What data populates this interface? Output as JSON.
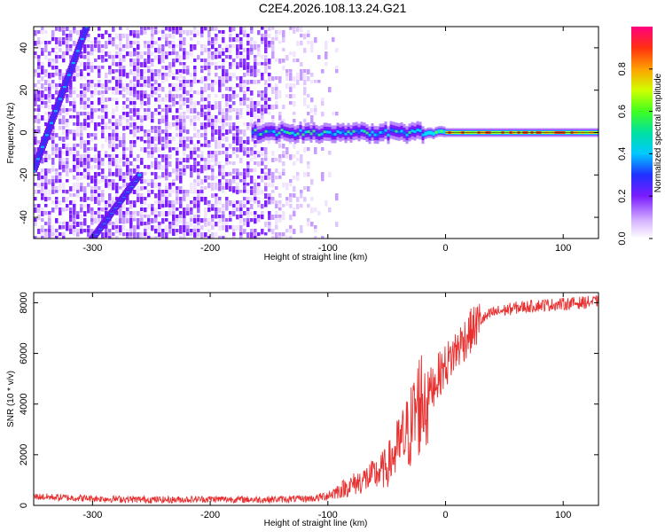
{
  "title": "C2E4.2026.108.13.24.G21",
  "chart_data": [
    {
      "type": "heatmap",
      "xlabel": "Height of straight line (km)",
      "ylabel": "Frequency (Hz)",
      "xlim": [
        -350,
        130
      ],
      "ylim": [
        -50,
        50
      ],
      "xticks": [
        -300,
        -200,
        -100,
        0,
        100
      ],
      "xtick_labels": [
        "-300",
        "-200",
        "-100",
        "0",
        "100"
      ],
      "yticks": [
        -40,
        -20,
        0,
        20,
        40
      ],
      "ytick_labels": [
        "-40",
        "-20",
        "0",
        "20",
        "40"
      ],
      "colorbar": {
        "label": "Normalized spectral amplitude",
        "range": [
          0,
          1
        ],
        "ticks": [
          0,
          0.2,
          0.4,
          0.6,
          0.8
        ],
        "tick_labels": [
          "0.0",
          "0.2",
          "0.4",
          "0.6",
          "0.8"
        ]
      },
      "features": {
        "noise_region_x": [
          -350,
          -100
        ],
        "ridge_upper": {
          "x": [
            -350,
            -305
          ],
          "y": [
            -18,
            50
          ]
        },
        "ridge_lower": {
          "x": [
            -300,
            -260
          ],
          "y": [
            -50,
            -20
          ]
        },
        "main_signal": {
          "x": [
            -165,
            130
          ],
          "y_center": 0
        }
      }
    },
    {
      "type": "line",
      "xlabel": "Height of straight line (km)",
      "ylabel": "SNR (10 * v/v)",
      "xlim": [
        -350,
        130
      ],
      "ylim": [
        0,
        8400
      ],
      "xticks": [
        -300,
        -200,
        -100,
        0,
        100
      ],
      "xtick_labels": [
        "-300",
        "-200",
        "-100",
        "0",
        "100"
      ],
      "yticks": [
        0,
        2000,
        4000,
        6000,
        8000
      ],
      "ytick_labels": [
        "0",
        "2000",
        "4000",
        "6000",
        "8000"
      ],
      "color": "#e83030",
      "series": [
        {
          "name": "SNR",
          "x": [
            -350,
            -320,
            -280,
            -240,
            -200,
            -160,
            -130,
            -110,
            -100,
            -90,
            -80,
            -70,
            -60,
            -50,
            -40,
            -30,
            -25,
            -20,
            -15,
            -10,
            -5,
            0,
            10,
            20,
            30,
            40,
            50,
            60,
            80,
            100,
            130
          ],
          "y": [
            350,
            300,
            250,
            220,
            250,
            230,
            250,
            280,
            400,
            600,
            800,
            1000,
            1200,
            1500,
            2300,
            3000,
            3800,
            4200,
            4400,
            4800,
            5200,
            5500,
            6200,
            6800,
            7300,
            7600,
            7700,
            7800,
            7900,
            7950,
            8050
          ]
        }
      ]
    }
  ]
}
